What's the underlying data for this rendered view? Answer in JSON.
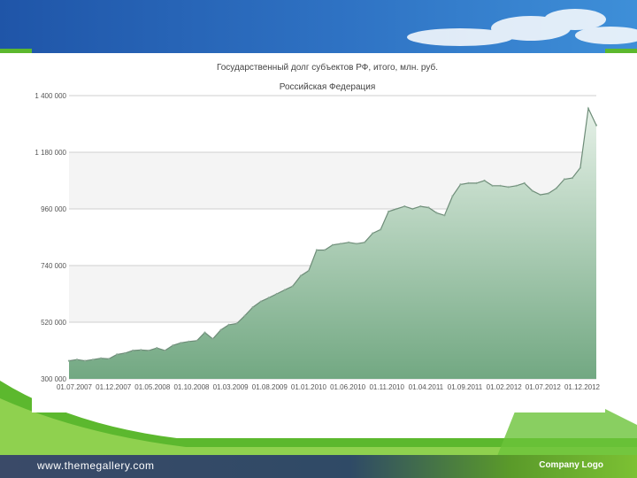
{
  "footer": {
    "url": "www.themegallery.com",
    "logo": "Company Logo"
  },
  "colors": {
    "banner": "#2a66b5",
    "accent_green": "#5cb82e",
    "area_fill": "#7aae86",
    "line": "#6e8c78"
  },
  "chart_data": {
    "type": "area",
    "title": "Государственный долг субъектов РФ, итого, млн. руб.",
    "subtitle": "Российская Федерация",
    "xlabel": "",
    "ylabel": "",
    "ylim": [
      300000,
      1400000
    ],
    "yticks": [
      300000,
      520000,
      740000,
      960000,
      1180000,
      1400000
    ],
    "ytick_labels": [
      "300 000",
      "520 000",
      "740 000",
      "960 000",
      "1 180 000",
      "1 400 000"
    ],
    "xtick_labels": [
      "01.07.2007",
      "01.12.2007",
      "01.05.2008",
      "01.10.2008",
      "01.03.2009",
      "01.08.2009",
      "01.01.2010",
      "01.06.2010",
      "01.11.2010",
      "01.04.2011",
      "01.09.2011",
      "01.02.2012",
      "01.07.2012",
      "01.12.2012"
    ],
    "grid": true,
    "legend": "none",
    "x": [
      0,
      1,
      2,
      3,
      4,
      5,
      6,
      7,
      8,
      9,
      10,
      11,
      12,
      13,
      14,
      15,
      16,
      17,
      18,
      19,
      20,
      21,
      22,
      23,
      24,
      25,
      26,
      27,
      28,
      29,
      30,
      31,
      32,
      33,
      34,
      35,
      36,
      37,
      38,
      39,
      40,
      41,
      42,
      43,
      44,
      45,
      46,
      47,
      48,
      49,
      50,
      51,
      52,
      53,
      54,
      55,
      56,
      57,
      58,
      59,
      60,
      61,
      62,
      63,
      64,
      65,
      66
    ],
    "values": [
      370000,
      375000,
      370000,
      375000,
      380000,
      378000,
      395000,
      400000,
      410000,
      412000,
      410000,
      420000,
      410000,
      430000,
      440000,
      445000,
      448000,
      480000,
      455000,
      490000,
      510000,
      515000,
      545000,
      578000,
      600000,
      615000,
      630000,
      645000,
      660000,
      700000,
      720000,
      800000,
      800000,
      820000,
      825000,
      830000,
      825000,
      830000,
      865000,
      880000,
      950000,
      960000,
      970000,
      960000,
      970000,
      965000,
      945000,
      935000,
      1010000,
      1055000,
      1060000,
      1060000,
      1070000,
      1050000,
      1050000,
      1045000,
      1050000,
      1060000,
      1030000,
      1015000,
      1020000,
      1040000,
      1075000,
      1080000,
      1120000,
      1350000,
      1285000
    ]
  }
}
